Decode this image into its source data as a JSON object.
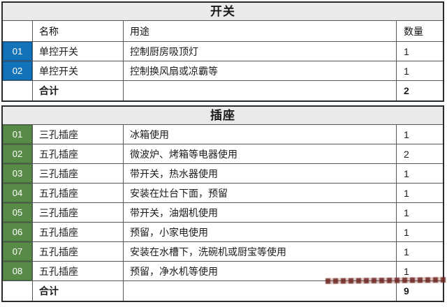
{
  "colors": {
    "switch_badge": "#1373ba",
    "socket_badge": "#588b48",
    "title_bar_bg": "#eaeaea",
    "border_outer": "#272c31",
    "border_inner": "#53565a",
    "watermark_red": "#6e2622"
  },
  "switch_table": {
    "title": "开关",
    "columns": {
      "id": "",
      "name": "名称",
      "use": "用途",
      "qty": "数量"
    },
    "rows": [
      {
        "id": "01",
        "name": "单控开关",
        "use": "控制厨房吸顶灯",
        "qty": "1"
      },
      {
        "id": "02",
        "name": "单控开关",
        "use": "控制换风扇或凉霸等",
        "qty": "1"
      }
    ],
    "total_label": "合计",
    "total_qty": "2"
  },
  "socket_table": {
    "title": "插座",
    "rows": [
      {
        "id": "01",
        "name": "三孔插座",
        "use": "冰箱使用",
        "qty": "1"
      },
      {
        "id": "02",
        "name": "五孔插座",
        "use": "微波炉、烤箱等电器使用",
        "qty": "2"
      },
      {
        "id": "03",
        "name": "三孔插座",
        "use": "带开关，热水器使用",
        "qty": "1"
      },
      {
        "id": "04",
        "name": "五孔插座",
        "use": "安装在灶台下面，预留",
        "qty": "1"
      },
      {
        "id": "05",
        "name": "三孔插座",
        "use": "带开关，油烟机使用",
        "qty": "1"
      },
      {
        "id": "06",
        "name": "五孔插座",
        "use": "预留，小家电使用",
        "qty": "1"
      },
      {
        "id": "07",
        "name": "五孔插座",
        "use": "安装在水槽下，洗碗机或厨宝等使用",
        "qty": "1"
      },
      {
        "id": "08",
        "name": "五孔插座",
        "use": "预留，净水机等使用",
        "qty": "1"
      }
    ],
    "total_label": "合计",
    "total_qty": "9"
  }
}
